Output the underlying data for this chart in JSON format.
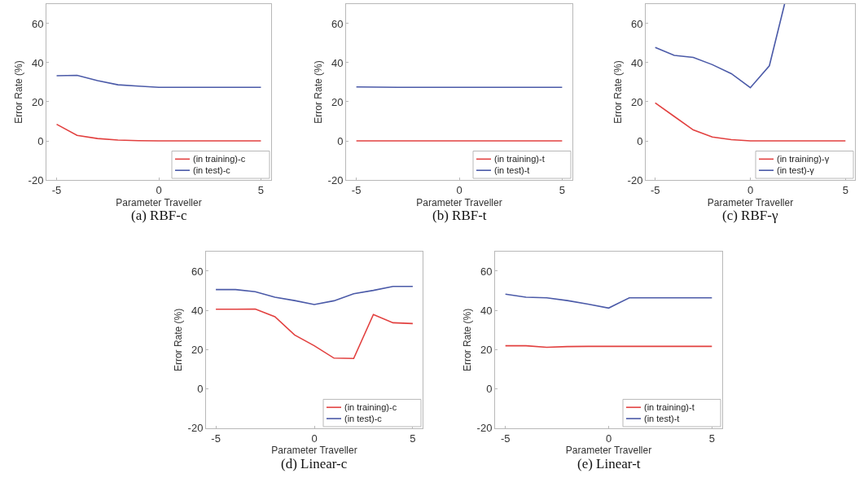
{
  "chart_data": [
    {
      "type": "line",
      "title": "(a) RBF-c",
      "xlabel": "Parameter Traveller",
      "ylabel": "Error Rate (%)",
      "x": [
        -5,
        -4,
        -3,
        -2,
        -1,
        0,
        1,
        2,
        3,
        4,
        5
      ],
      "xlim": [
        -5.5,
        5.5
      ],
      "ylim": [
        -20,
        70
      ],
      "xticks": [
        -5,
        0,
        5
      ],
      "yticks": [
        -20,
        0,
        20,
        40,
        60
      ],
      "legend": "bottom right",
      "series": [
        {
          "name": "(in training)-c",
          "color": "#e2403f",
          "values": [
            8.5,
            2.8,
            1.2,
            0.4,
            0.1,
            0,
            0,
            0,
            0,
            0,
            0
          ]
        },
        {
          "name": "(in test)-c",
          "color": "#4b5aa8",
          "values": [
            33.3,
            33.5,
            30.8,
            28.7,
            28,
            27.4,
            27.4,
            27.4,
            27.4,
            27.4,
            27.4
          ]
        }
      ]
    },
    {
      "type": "line",
      "title": "(b) RBF-t",
      "xlabel": "Parameter Traveller",
      "ylabel": "Error Rate (%)",
      "x": [
        -5,
        -4,
        -3,
        -2,
        -1,
        0,
        1,
        2,
        3,
        4,
        5
      ],
      "xlim": [
        -5.5,
        5.5
      ],
      "ylim": [
        -20,
        70
      ],
      "xticks": [
        -5,
        0,
        5
      ],
      "yticks": [
        -20,
        0,
        20,
        40,
        60
      ],
      "legend": "bottom right",
      "series": [
        {
          "name": "(in training)-t",
          "color": "#e2403f",
          "values": [
            0,
            0,
            0,
            0,
            0,
            0,
            0,
            0,
            0,
            0,
            0
          ]
        },
        {
          "name": "(in test)-t",
          "color": "#4b5aa8",
          "values": [
            27.6,
            27.5,
            27.4,
            27.4,
            27.4,
            27.4,
            27.4,
            27.4,
            27.4,
            27.4,
            27.4
          ]
        }
      ]
    },
    {
      "type": "line",
      "title": "(c) RBF-γ",
      "xlabel": "Parameter Traveller",
      "ylabel": "Error Rate (%)",
      "x": [
        -5,
        -4,
        -3,
        -2,
        -1,
        0,
        1,
        2,
        3,
        4,
        5
      ],
      "xlim": [
        -5.5,
        5.5
      ],
      "ylim": [
        -20,
        70
      ],
      "xticks": [
        -5,
        0,
        5
      ],
      "yticks": [
        -20,
        0,
        20,
        40,
        60
      ],
      "legend": "bottom right",
      "series": [
        {
          "name": "(in training)-γ",
          "color": "#e2403f",
          "values": [
            19.4,
            12.5,
            5.6,
            2,
            0.6,
            0,
            0,
            0,
            0,
            0,
            0
          ]
        },
        {
          "name": "(in test)-γ",
          "color": "#4b5aa8",
          "x": [
            -5,
            -4,
            -3,
            -2,
            -1,
            0,
            1,
            1.8
          ],
          "values": [
            47.8,
            43.7,
            42.7,
            39,
            34.4,
            27.2,
            38.4,
            70
          ]
        }
      ]
    },
    {
      "type": "line",
      "title": "(d) Linear-c",
      "xlabel": "Parameter Traveller",
      "ylabel": "Error Rate (%)",
      "x": [
        -5,
        -4,
        -3,
        -2,
        -1,
        0,
        1,
        2,
        3,
        4,
        5
      ],
      "xlim": [
        -5.5,
        5.5
      ],
      "ylim": [
        -20,
        70
      ],
      "xticks": [
        -5,
        0,
        5
      ],
      "yticks": [
        -20,
        0,
        20,
        40,
        60
      ],
      "legend": "bottom right",
      "series": [
        {
          "name": "(in training)-c",
          "color": "#e2403f",
          "values": [
            40.6,
            40.6,
            40.7,
            36.8,
            27.5,
            22,
            15.7,
            15.5,
            37.9,
            33.7,
            33.3
          ]
        },
        {
          "name": "(in test)-c",
          "color": "#4b5aa8",
          "values": [
            50.6,
            50.6,
            49.5,
            46.7,
            45,
            43,
            44.9,
            48.5,
            50.2,
            52.2,
            52.2
          ]
        }
      ]
    },
    {
      "type": "line",
      "title": "(e) Linear-t",
      "xlabel": "Parameter Traveller",
      "ylabel": "Error Rate (%)",
      "x": [
        -5,
        -4,
        -3,
        -2,
        -1,
        0,
        1,
        2,
        3,
        4,
        5
      ],
      "xlim": [
        -5.5,
        5.5
      ],
      "ylim": [
        -20,
        70
      ],
      "xticks": [
        -5,
        0,
        5
      ],
      "yticks": [
        -20,
        0,
        20,
        40,
        60
      ],
      "legend": "bottom right",
      "series": [
        {
          "name": "(in training)-t",
          "color": "#e2403f",
          "values": [
            22,
            22,
            21.2,
            21.6,
            21.7,
            21.7,
            21.7,
            21.7,
            21.7,
            21.7,
            21.7
          ]
        },
        {
          "name": "(in test)-t",
          "color": "#4b5aa8",
          "values": [
            48.3,
            46.7,
            46.4,
            45,
            43.2,
            41.2,
            46.4,
            46.4,
            46.4,
            46.4,
            46.4
          ]
        }
      ]
    }
  ]
}
